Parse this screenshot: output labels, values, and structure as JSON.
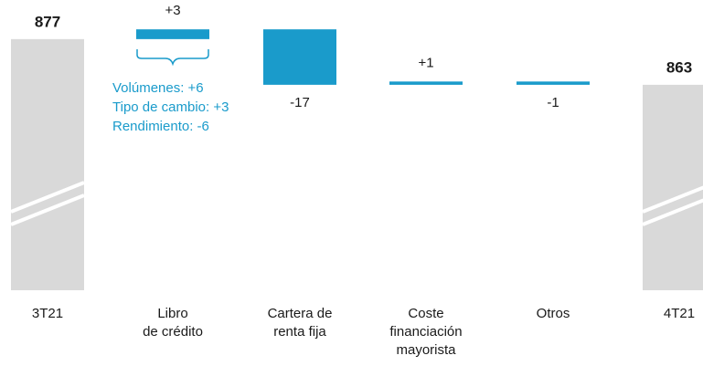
{
  "chart_data": {
    "type": "waterfall",
    "categories": [
      [
        "3T21"
      ],
      [
        "Libro",
        "de crédito"
      ],
      [
        "Cartera de",
        "renta fija"
      ],
      [
        "Coste",
        "financiación",
        "mayorista"
      ],
      [
        "Otros"
      ],
      [
        "4T21"
      ]
    ],
    "values": [
      877,
      3,
      -17,
      1,
      -1,
      863
    ],
    "value_labels": [
      "877",
      "+3",
      "-17",
      "+1",
      "-1",
      "863"
    ],
    "annotation": [
      "Volúmenes: +6",
      "Tipo de cambio: +3",
      "Rendimiento: -6"
    ],
    "total_color": "#d9d9d9",
    "delta_color": "#1a9bcb",
    "ylim": [
      800,
      882
    ]
  }
}
